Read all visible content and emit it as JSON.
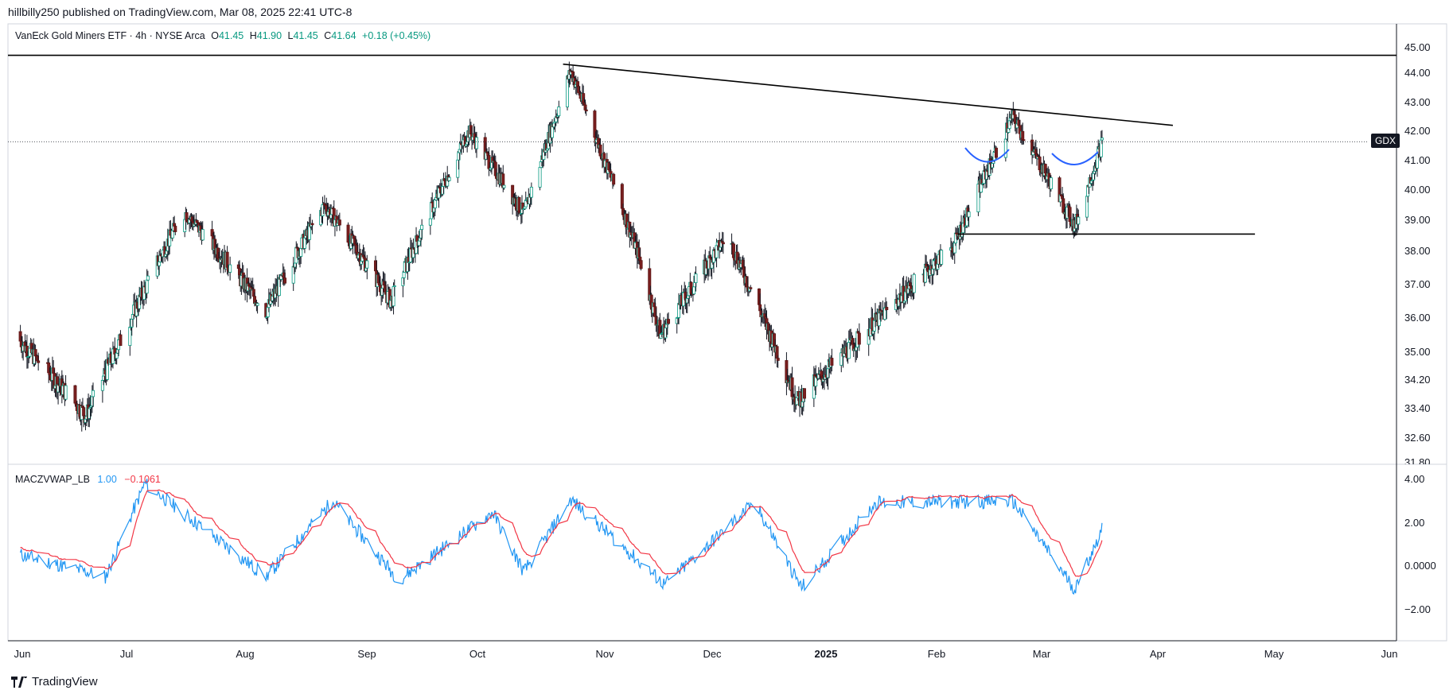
{
  "publisher": "hillbilly250 published on TradingView.com, Mar 08, 2025 22:41 UTC-8",
  "main": {
    "title": "VanEck Gold Miners ETF · 4h · NYSE Arca",
    "ohlc": {
      "o_label": "O",
      "o": "41.45",
      "h_label": "H",
      "h": "41.90",
      "l_label": "L",
      "l": "41.45",
      "c_label": "C",
      "c": "41.64",
      "change": "+0.18 (+0.45%)"
    },
    "symbol_tag": "GDX",
    "last_price": 41.64
  },
  "indicator": {
    "name": "MACZVWAP_LB",
    "value1": "1.00",
    "value2": "−0.1061",
    "color1": "#2196f3",
    "color2": "#f23645"
  },
  "brand": "TradingView",
  "colors": {
    "up": "#089981",
    "down": "#7a1f1f",
    "drawing": "#000000",
    "cup": "#2962ff"
  },
  "chart_data": [
    {
      "type": "candlestick",
      "series": "GDX 4h",
      "y_axis_ticks": [
        "45.00",
        "44.00",
        "43.00",
        "42.00",
        "41.00",
        "40.00",
        "39.00",
        "38.00",
        "37.00",
        "36.00",
        "35.00",
        "34.20",
        "33.40",
        "32.60",
        "31.80"
      ],
      "x_axis_ticks": [
        "Jun",
        "Jul",
        "Aug",
        "Sep",
        "Oct",
        "Nov",
        "Dec",
        "2025",
        "Feb",
        "Mar",
        "Apr",
        "May",
        "Jun"
      ],
      "scale": "log",
      "ylim": [
        31.8,
        45.6
      ],
      "key_points": [
        {
          "date": "2024-06-01",
          "close": 35.6
        },
        {
          "date": "2024-06-20",
          "close": 33.2
        },
        {
          "date": "2024-07-15",
          "close": 39.3
        },
        {
          "date": "2024-08-05",
          "close": 36.2
        },
        {
          "date": "2024-08-20",
          "close": 39.5
        },
        {
          "date": "2024-09-06",
          "close": 36.5
        },
        {
          "date": "2024-09-26",
          "close": 42.0
        },
        {
          "date": "2024-10-10",
          "close": 39.2
        },
        {
          "date": "2024-10-22",
          "close": 44.1
        },
        {
          "date": "2024-11-08",
          "close": 38.0
        },
        {
          "date": "2024-11-14",
          "close": 35.5
        },
        {
          "date": "2024-12-01",
          "close": 38.5
        },
        {
          "date": "2024-12-19",
          "close": 33.6
        },
        {
          "date": "2025-01-28",
          "close": 38.2
        },
        {
          "date": "2025-02-12",
          "close": 42.5
        },
        {
          "date": "2025-02-28",
          "close": 38.8
        },
        {
          "date": "2025-03-07",
          "close": 41.64
        }
      ],
      "drawings": {
        "resistance_horizontal": 44.7,
        "descending_trendline": [
          {
            "date": "2024-10-20",
            "price": 44.35
          },
          {
            "date": "2025-03-25",
            "price": 42.2
          }
        ],
        "support_horizontal": {
          "price": 38.55,
          "from": "2025-01-29",
          "to": "2025-04-15"
        }
      }
    },
    {
      "type": "line",
      "series_names": [
        "MACZVWAP_LB",
        "Signal"
      ],
      "y_axis_ticks": [
        "4.00",
        "2.00",
        "0.0000",
        "−2.00"
      ],
      "ylim": [
        -3.4,
        4.0
      ],
      "key_points": [
        {
          "date": "2024-06-01",
          "value": -0.5
        },
        {
          "date": "2024-06-25",
          "value": -2.0
        },
        {
          "date": "2024-07-05",
          "value": 3.8
        },
        {
          "date": "2024-08-05",
          "value": -2.0
        },
        {
          "date": "2024-08-22",
          "value": 2.7
        },
        {
          "date": "2024-09-08",
          "value": -2.2
        },
        {
          "date": "2024-10-02",
          "value": 2.0
        },
        {
          "date": "2024-10-10",
          "value": -1.7
        },
        {
          "date": "2024-10-22",
          "value": 2.8
        },
        {
          "date": "2024-11-15",
          "value": -2.5
        },
        {
          "date": "2024-12-08",
          "value": 2.6
        },
        {
          "date": "2024-12-20",
          "value": -2.7
        },
        {
          "date": "2025-01-08",
          "value": 2.6
        },
        {
          "date": "2025-02-12",
          "value": 2.7
        },
        {
          "date": "2025-02-28",
          "value": -2.8
        },
        {
          "date": "2025-03-07",
          "value": 1.0
        }
      ]
    }
  ]
}
